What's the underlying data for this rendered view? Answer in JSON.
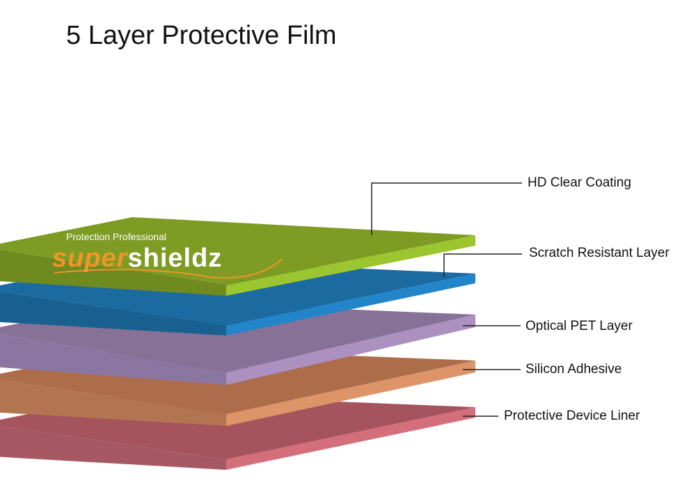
{
  "title": "5 Layer Protective Film",
  "logo": {
    "tagline": "Protection Professional",
    "brand_part1": "super",
    "brand_part2": "shieldz"
  },
  "layers": [
    {
      "label": "HD Clear Coating",
      "top": "#7e9b24",
      "side": "#6f8a1f",
      "edge": "#9cc62f"
    },
    {
      "label": "Scratch Resistant Layer",
      "top": "#1b6aa0",
      "side": "#17608f",
      "edge": "#2385c9"
    },
    {
      "label": "Optical PET Layer",
      "top": "#877196",
      "side": "#8a76a0",
      "edge": "#ab90c0"
    },
    {
      "label": "Silicon Adhesive",
      "top": "#ad6d4b",
      "side": "#b37452",
      "edge": "#dd9468"
    },
    {
      "label": "Protective Device Liner",
      "top": "#a5535d",
      "side": "#a65863",
      "edge": "#d46e7a"
    }
  ]
}
